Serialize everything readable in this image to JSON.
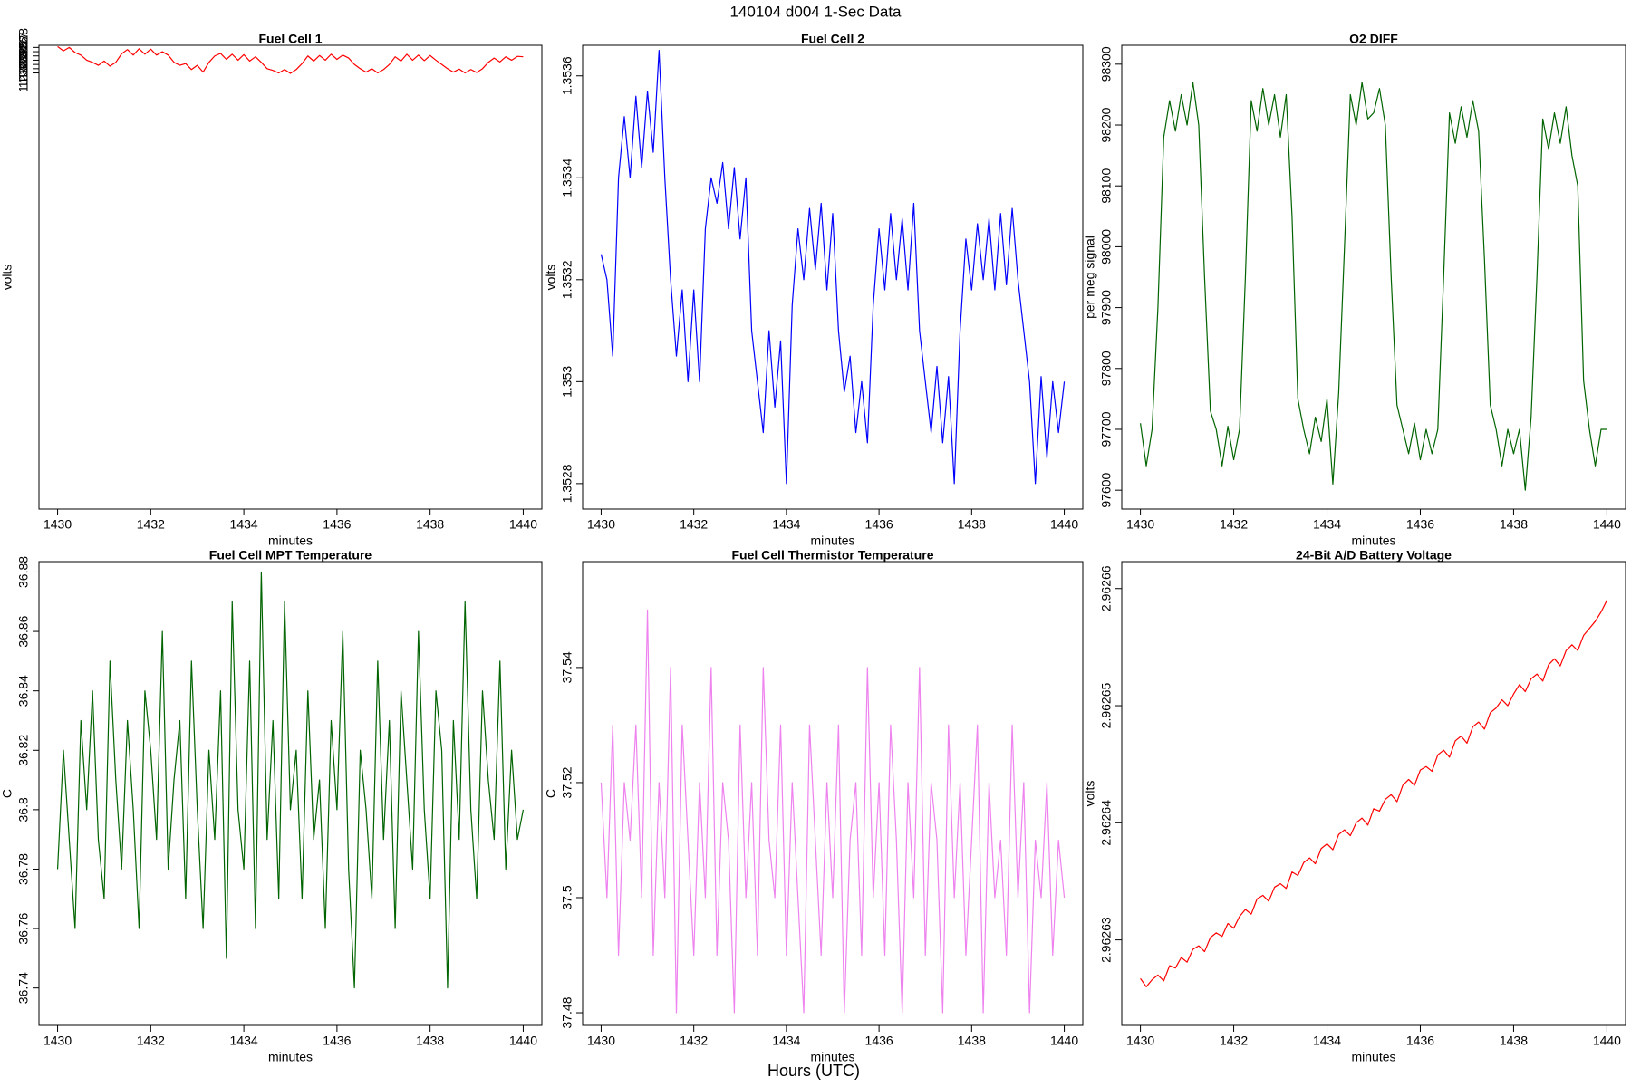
{
  "super_title": "140104   d004   1-Sec Data",
  "super_xlabel": "Hours (UTC)",
  "chart_data": [
    {
      "type": "line",
      "title": "Fuel Cell 1",
      "xlabel": "minutes",
      "ylabel": "volts",
      "color": "#ff0000",
      "xlim": [
        1429.6,
        1440.4
      ],
      "xticks": [
        1430,
        1432,
        1434,
        1436,
        1438,
        1440
      ],
      "ylim": [
        1.22195,
        1.23285
      ],
      "yticks": [
        1.2322,
        1.2323,
        1.2324,
        1.2325,
        1.2326,
        1.2327,
        1.2328
      ],
      "x": [
        1430,
        1430.125,
        1430.25,
        1430.375,
        1430.5,
        1430.625,
        1430.75,
        1430.875,
        1431,
        1431.125,
        1431.25,
        1431.375,
        1431.5,
        1431.625,
        1431.75,
        1431.875,
        1432,
        1432.125,
        1432.25,
        1432.375,
        1432.5,
        1432.625,
        1432.75,
        1432.875,
        1433,
        1433.125,
        1433.25,
        1433.375,
        1433.5,
        1433.625,
        1433.75,
        1433.875,
        1434,
        1434.125,
        1434.25,
        1434.375,
        1434.5,
        1434.625,
        1434.75,
        1434.875,
        1435,
        1435.125,
        1435.25,
        1435.375,
        1435.5,
        1435.625,
        1435.75,
        1435.875,
        1436,
        1436.125,
        1436.25,
        1436.375,
        1436.5,
        1436.625,
        1436.75,
        1436.875,
        1437,
        1437.125,
        1437.25,
        1437.375,
        1437.5,
        1437.625,
        1437.75,
        1437.875,
        1438,
        1438.125,
        1438.25,
        1438.375,
        1438.5,
        1438.625,
        1438.75,
        1438.875,
        1439,
        1439.125,
        1439.25,
        1439.375,
        1439.5,
        1439.625,
        1439.75,
        1439.875,
        1440
      ],
      "values": [
        1.23282,
        1.23272,
        1.2328,
        1.23268,
        1.23262,
        1.2325,
        1.23245,
        1.23238,
        1.23248,
        1.23236,
        1.23245,
        1.23265,
        1.23275,
        1.23262,
        1.23277,
        1.23264,
        1.23276,
        1.23262,
        1.2327,
        1.23262,
        1.23245,
        1.23238,
        1.23242,
        1.23228,
        1.23238,
        1.23222,
        1.23245,
        1.2326,
        1.23266,
        1.23252,
        1.23264,
        1.2325,
        1.23263,
        1.23248,
        1.23258,
        1.23245,
        1.2323,
        1.23226,
        1.2322,
        1.23228,
        1.23219,
        1.23228,
        1.23242,
        1.2326,
        1.23248,
        1.23261,
        1.2325,
        1.23264,
        1.23252,
        1.23262,
        1.23255,
        1.2324,
        1.2323,
        1.23222,
        1.2323,
        1.2322,
        1.23228,
        1.2324,
        1.23258,
        1.23248,
        1.23264,
        1.2325,
        1.23262,
        1.23249,
        1.23261,
        1.2325,
        1.2324,
        1.2323,
        1.23222,
        1.23229,
        1.2322,
        1.23228,
        1.23221,
        1.2323,
        1.23245,
        1.23255,
        1.23246,
        1.23258,
        1.2325,
        1.23259,
        1.23258
      ]
    },
    {
      "type": "line",
      "title": "Fuel Cell 2",
      "xlabel": "minutes",
      "ylabel": "volts",
      "color": "#0000ff",
      "xlim": [
        1429.6,
        1440.4
      ],
      "xticks": [
        1430,
        1432,
        1434,
        1436,
        1438,
        1440
      ],
      "ylim": [
        1.35275,
        1.35366
      ],
      "yticks": [
        1.3528,
        1.353,
        1.3532,
        1.3534,
        1.3536
      ],
      "x": [
        1430,
        1430.125,
        1430.25,
        1430.375,
        1430.5,
        1430.625,
        1430.75,
        1430.875,
        1431,
        1431.125,
        1431.25,
        1431.375,
        1431.5,
        1431.625,
        1431.75,
        1431.875,
        1432,
        1432.125,
        1432.25,
        1432.375,
        1432.5,
        1432.625,
        1432.75,
        1432.875,
        1433,
        1433.125,
        1433.25,
        1433.375,
        1433.5,
        1433.625,
        1433.75,
        1433.875,
        1434,
        1434.125,
        1434.25,
        1434.375,
        1434.5,
        1434.625,
        1434.75,
        1434.875,
        1435,
        1435.125,
        1435.25,
        1435.375,
        1435.5,
        1435.625,
        1435.75,
        1435.875,
        1436,
        1436.125,
        1436.25,
        1436.375,
        1436.5,
        1436.625,
        1436.75,
        1436.875,
        1437,
        1437.125,
        1437.25,
        1437.375,
        1437.5,
        1437.625,
        1437.75,
        1437.875,
        1438,
        1438.125,
        1438.25,
        1438.375,
        1438.5,
        1438.625,
        1438.75,
        1438.875,
        1439,
        1439.125,
        1439.25,
        1439.375,
        1439.5,
        1439.625,
        1439.75,
        1439.875,
        1440
      ],
      "values": [
        1.35325,
        1.3532,
        1.35305,
        1.3534,
        1.35352,
        1.3534,
        1.35356,
        1.35342,
        1.35357,
        1.35345,
        1.35365,
        1.3534,
        1.3532,
        1.35305,
        1.35318,
        1.353,
        1.35318,
        1.353,
        1.3533,
        1.3534,
        1.35335,
        1.35343,
        1.3533,
        1.35342,
        1.35328,
        1.3534,
        1.3531,
        1.353,
        1.3529,
        1.3531,
        1.35295,
        1.35308,
        1.3528,
        1.35315,
        1.3533,
        1.3532,
        1.35334,
        1.35322,
        1.35335,
        1.35318,
        1.35333,
        1.3531,
        1.35298,
        1.35305,
        1.3529,
        1.353,
        1.35288,
        1.35315,
        1.3533,
        1.35318,
        1.35333,
        1.3532,
        1.35332,
        1.35318,
        1.35335,
        1.3531,
        1.353,
        1.3529,
        1.35303,
        1.35288,
        1.35301,
        1.3528,
        1.3531,
        1.35328,
        1.35318,
        1.35331,
        1.3532,
        1.35332,
        1.35318,
        1.35333,
        1.35319,
        1.35334,
        1.3532,
        1.3531,
        1.353,
        1.3528,
        1.35301,
        1.35285,
        1.353,
        1.3529,
        1.353
      ]
    },
    {
      "type": "line",
      "title": "O2 DIFF",
      "xlabel": "minutes",
      "ylabel": "per meg signal",
      "color": "#006400",
      "xlim": [
        1429.6,
        1440.4
      ],
      "xticks": [
        1430,
        1432,
        1434,
        1436,
        1438,
        1440
      ],
      "ylim": [
        97569,
        98331
      ],
      "yticks": [
        97600,
        97700,
        97800,
        97900,
        98000,
        98100,
        98200,
        98300
      ],
      "x": [
        1430,
        1430.125,
        1430.25,
        1430.375,
        1430.5,
        1430.625,
        1430.75,
        1430.875,
        1431,
        1431.125,
        1431.25,
        1431.375,
        1431.5,
        1431.625,
        1431.75,
        1431.875,
        1432,
        1432.125,
        1432.25,
        1432.375,
        1432.5,
        1432.625,
        1432.75,
        1432.875,
        1433,
        1433.125,
        1433.25,
        1433.375,
        1433.5,
        1433.625,
        1433.75,
        1433.875,
        1434,
        1434.125,
        1434.25,
        1434.375,
        1434.5,
        1434.625,
        1434.75,
        1434.875,
        1435,
        1435.125,
        1435.25,
        1435.375,
        1435.5,
        1435.625,
        1435.75,
        1435.875,
        1436,
        1436.125,
        1436.25,
        1436.375,
        1436.5,
        1436.625,
        1436.75,
        1436.875,
        1437,
        1437.125,
        1437.25,
        1437.375,
        1437.5,
        1437.625,
        1437.75,
        1437.875,
        1438,
        1438.125,
        1438.25,
        1438.375,
        1438.5,
        1438.625,
        1438.75,
        1438.875,
        1439,
        1439.125,
        1439.25,
        1439.375,
        1439.5,
        1439.625,
        1439.75,
        1439.875,
        1440
      ],
      "values": [
        97710,
        97640,
        97700,
        97900,
        98180,
        98240,
        98190,
        98250,
        98200,
        98270,
        98200,
        97950,
        97730,
        97700,
        97640,
        97705,
        97650,
        97700,
        97950,
        98240,
        98190,
        98260,
        98200,
        98250,
        98180,
        98250,
        98050,
        97750,
        97700,
        97660,
        97720,
        97680,
        97750,
        97610,
        97760,
        98000,
        98250,
        98200,
        98270,
        98210,
        98220,
        98260,
        98200,
        97950,
        97740,
        97700,
        97660,
        97710,
        97650,
        97700,
        97660,
        97700,
        97950,
        98220,
        98170,
        98230,
        98180,
        98240,
        98190,
        97980,
        97740,
        97700,
        97640,
        97700,
        97660,
        97700,
        97600,
        97720,
        97950,
        98210,
        98160,
        98220,
        98170,
        98230,
        98150,
        98100,
        97780,
        97700,
        97640,
        97700,
        97700
      ]
    },
    {
      "type": "line",
      "title": "Fuel Cell MPT Temperature",
      "xlabel": "minutes",
      "ylabel": "C",
      "color": "#006400",
      "xlim": [
        1429.6,
        1440.4
      ],
      "xticks": [
        1430,
        1432,
        1434,
        1436,
        1438,
        1440
      ],
      "ylim": [
        36.7274,
        36.8835
      ],
      "yticks": [
        36.74,
        36.76,
        36.78,
        36.8,
        36.82,
        36.84,
        36.86,
        36.88
      ],
      "x": [
        1430,
        1430.125,
        1430.25,
        1430.375,
        1430.5,
        1430.625,
        1430.75,
        1430.875,
        1431,
        1431.125,
        1431.25,
        1431.375,
        1431.5,
        1431.625,
        1431.75,
        1431.875,
        1432,
        1432.125,
        1432.25,
        1432.375,
        1432.5,
        1432.625,
        1432.75,
        1432.875,
        1433,
        1433.125,
        1433.25,
        1433.375,
        1433.5,
        1433.625,
        1433.75,
        1433.875,
        1434,
        1434.125,
        1434.25,
        1434.375,
        1434.5,
        1434.625,
        1434.75,
        1434.875,
        1435,
        1435.125,
        1435.25,
        1435.375,
        1435.5,
        1435.625,
        1435.75,
        1435.875,
        1436,
        1436.125,
        1436.25,
        1436.375,
        1436.5,
        1436.625,
        1436.75,
        1436.875,
        1437,
        1437.125,
        1437.25,
        1437.375,
        1437.5,
        1437.625,
        1437.75,
        1437.875,
        1438,
        1438.125,
        1438.25,
        1438.375,
        1438.5,
        1438.625,
        1438.75,
        1438.875,
        1439,
        1439.125,
        1439.25,
        1439.375,
        1439.5,
        1439.625,
        1439.75,
        1439.875,
        1440
      ],
      "values": [
        36.78,
        36.82,
        36.79,
        36.76,
        36.83,
        36.8,
        36.84,
        36.79,
        36.77,
        36.85,
        36.81,
        36.78,
        36.83,
        36.8,
        36.76,
        36.84,
        36.82,
        36.79,
        36.86,
        36.78,
        36.81,
        36.83,
        36.77,
        36.85,
        36.8,
        36.76,
        36.82,
        36.79,
        36.84,
        36.75,
        36.87,
        36.8,
        36.78,
        36.85,
        36.76,
        36.88,
        36.79,
        36.83,
        36.77,
        36.87,
        36.8,
        36.82,
        36.77,
        36.84,
        36.79,
        36.81,
        36.76,
        36.83,
        36.8,
        36.86,
        36.78,
        36.74,
        36.82,
        36.8,
        36.77,
        36.85,
        36.79,
        36.83,
        36.76,
        36.84,
        36.81,
        36.78,
        36.86,
        36.8,
        36.77,
        36.84,
        36.82,
        36.74,
        36.83,
        36.79,
        36.87,
        36.8,
        36.77,
        36.84,
        36.81,
        36.79,
        36.85,
        36.78,
        36.82,
        36.79,
        36.8
      ]
    },
    {
      "type": "line",
      "title": "Fuel Cell Thermistor Temperature",
      "xlabel": "minutes",
      "ylabel": "C",
      "color": "#ee82ee",
      "xlim": [
        1429.6,
        1440.4
      ],
      "xticks": [
        1430,
        1432,
        1434,
        1436,
        1438,
        1440
      ],
      "ylim": [
        37.4778,
        37.5584
      ],
      "yticks": [
        37.48,
        37.5,
        37.52,
        37.54
      ],
      "x": [
        1430,
        1430.125,
        1430.25,
        1430.375,
        1430.5,
        1430.625,
        1430.75,
        1430.875,
        1431,
        1431.125,
        1431.25,
        1431.375,
        1431.5,
        1431.625,
        1431.75,
        1431.875,
        1432,
        1432.125,
        1432.25,
        1432.375,
        1432.5,
        1432.625,
        1432.75,
        1432.875,
        1433,
        1433.125,
        1433.25,
        1433.375,
        1433.5,
        1433.625,
        1433.75,
        1433.875,
        1434,
        1434.125,
        1434.25,
        1434.375,
        1434.5,
        1434.625,
        1434.75,
        1434.875,
        1435,
        1435.125,
        1435.25,
        1435.375,
        1435.5,
        1435.625,
        1435.75,
        1435.875,
        1436,
        1436.125,
        1436.25,
        1436.375,
        1436.5,
        1436.625,
        1436.75,
        1436.875,
        1437,
        1437.125,
        1437.25,
        1437.375,
        1437.5,
        1437.625,
        1437.75,
        1437.875,
        1438,
        1438.125,
        1438.25,
        1438.375,
        1438.5,
        1438.625,
        1438.75,
        1438.875,
        1439,
        1439.125,
        1439.25,
        1439.375,
        1439.5,
        1439.625,
        1439.75,
        1439.875,
        1440
      ],
      "values": [
        37.52,
        37.5,
        37.53,
        37.49,
        37.52,
        37.51,
        37.53,
        37.5,
        37.55,
        37.49,
        37.52,
        37.5,
        37.54,
        37.48,
        37.53,
        37.51,
        37.49,
        37.52,
        37.5,
        37.54,
        37.49,
        37.52,
        37.51,
        37.48,
        37.53,
        37.5,
        37.52,
        37.49,
        37.54,
        37.51,
        37.5,
        37.53,
        37.49,
        37.52,
        37.5,
        37.48,
        37.53,
        37.51,
        37.49,
        37.52,
        37.5,
        37.53,
        37.48,
        37.51,
        37.52,
        37.49,
        37.54,
        37.5,
        37.52,
        37.49,
        37.53,
        37.51,
        37.48,
        37.52,
        37.5,
        37.54,
        37.49,
        37.52,
        37.51,
        37.48,
        37.53,
        37.5,
        37.52,
        37.49,
        37.51,
        37.53,
        37.48,
        37.52,
        37.5,
        37.51,
        37.49,
        37.53,
        37.5,
        37.52,
        37.48,
        37.51,
        37.5,
        37.52,
        37.49,
        37.51,
        37.5
      ]
    },
    {
      "type": "line",
      "title": "24-Bit A/D Battery Voltage",
      "xlabel": "minutes",
      "ylabel": "volts",
      "color": "#ff0000",
      "xlim": [
        1429.6,
        1440.4
      ],
      "xticks": [
        1430,
        1432,
        1434,
        1436,
        1438,
        1440
      ],
      "ylim": [
        2.9626227,
        2.9626623
      ],
      "yticks": [
        2.96263,
        2.96264,
        2.96265,
        2.96266
      ],
      "x": [
        1430,
        1430.125,
        1430.25,
        1430.375,
        1430.5,
        1430.625,
        1430.75,
        1430.875,
        1431,
        1431.125,
        1431.25,
        1431.375,
        1431.5,
        1431.625,
        1431.75,
        1431.875,
        1432,
        1432.125,
        1432.25,
        1432.375,
        1432.5,
        1432.625,
        1432.75,
        1432.875,
        1433,
        1433.125,
        1433.25,
        1433.375,
        1433.5,
        1433.625,
        1433.75,
        1433.875,
        1434,
        1434.125,
        1434.25,
        1434.375,
        1434.5,
        1434.625,
        1434.75,
        1434.875,
        1435,
        1435.125,
        1435.25,
        1435.375,
        1435.5,
        1435.625,
        1435.75,
        1435.875,
        1436,
        1436.125,
        1436.25,
        1436.375,
        1436.5,
        1436.625,
        1436.75,
        1436.875,
        1437,
        1437.125,
        1437.25,
        1437.375,
        1437.5,
        1437.625,
        1437.75,
        1437.875,
        1438,
        1438.125,
        1438.25,
        1438.375,
        1438.5,
        1438.625,
        1438.75,
        1438.875,
        1439,
        1439.125,
        1439.25,
        1439.375,
        1439.5,
        1439.625,
        1439.75,
        1439.875,
        1440
      ],
      "values": [
        2.9626267,
        2.962626,
        2.9626266,
        2.962627,
        2.9626265,
        2.9626278,
        2.9626276,
        2.9626285,
        2.9626281,
        2.9626292,
        2.9626295,
        2.962629,
        2.9626302,
        2.9626306,
        2.9626303,
        2.9626314,
        2.962631,
        2.962632,
        2.9626326,
        2.9626322,
        2.9626335,
        2.9626338,
        2.9626333,
        2.9626345,
        2.9626348,
        2.9626344,
        2.9626358,
        2.9626355,
        2.9626366,
        2.962637,
        2.9626365,
        2.9626378,
        2.9626382,
        2.9626377,
        2.962639,
        2.9626394,
        2.9626389,
        2.96264,
        2.9626404,
        2.9626398,
        2.9626412,
        2.962641,
        2.962642,
        2.9626424,
        2.9626418,
        2.9626432,
        2.9626437,
        2.9626432,
        2.9626445,
        2.9626448,
        2.9626444,
        2.9626458,
        2.9626462,
        2.9626456,
        2.962647,
        2.9626474,
        2.9626468,
        2.9626482,
        2.9626486,
        2.962648,
        2.9626494,
        2.9626498,
        2.9626505,
        2.96265,
        2.962651,
        2.9626518,
        2.9626512,
        2.9626523,
        2.9626527,
        2.9626521,
        2.9626535,
        2.962654,
        2.9626534,
        2.9626547,
        2.9626552,
        2.9626547,
        2.962656,
        2.9626566,
        2.9626572,
        2.962658,
        2.962659
      ]
    }
  ]
}
